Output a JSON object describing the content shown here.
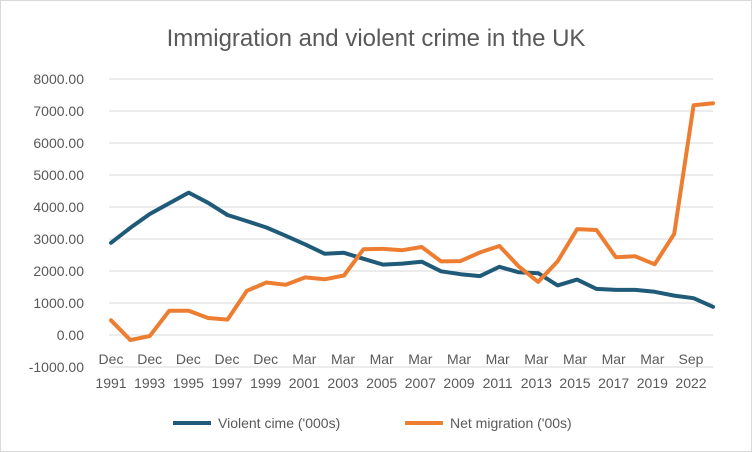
{
  "chart_data": {
    "type": "line",
    "title": "Immigration and violent crime in the UK",
    "xlabel": "",
    "ylabel": "",
    "ylim": [
      -1000,
      8000
    ],
    "y_ticks": [
      "8000.00",
      "7000.00",
      "6000.00",
      "5000.00",
      "4000.00",
      "3000.00",
      "2000.00",
      "1000.00",
      "0.00",
      "-1000.00"
    ],
    "x_labels": [
      {
        "month": "Dec",
        "year": "1991"
      },
      {
        "month": "Dec",
        "year": "1993"
      },
      {
        "month": "Dec",
        "year": "1995"
      },
      {
        "month": "Dec",
        "year": "1997"
      },
      {
        "month": "Dec",
        "year": "1999"
      },
      {
        "month": "Mar",
        "year": "2001"
      },
      {
        "month": "Mar",
        "year": "2003"
      },
      {
        "month": "Mar",
        "year": "2005"
      },
      {
        "month": "Mar",
        "year": "2007"
      },
      {
        "month": "Mar",
        "year": "2009"
      },
      {
        "month": "Mar",
        "year": "2011"
      },
      {
        "month": "Mar",
        "year": "2013"
      },
      {
        "month": "Mar",
        "year": "2015"
      },
      {
        "month": "Mar",
        "year": "2017"
      },
      {
        "month": "Mar",
        "year": "2019"
      },
      {
        "month": "Sep",
        "year": "2022"
      }
    ],
    "grid": true,
    "legend_position": "bottom",
    "series": [
      {
        "name": "Violent cime ('000s)",
        "color": "#1f5a78",
        "values": [
          2880,
          3350,
          3780,
          4120,
          4450,
          4130,
          3750,
          3560,
          3360,
          3100,
          2830,
          2540,
          2570,
          2380,
          2200,
          2230,
          2290,
          1990,
          1900,
          1840,
          2130,
          1960,
          1930,
          1550,
          1730,
          1440,
          1410,
          1410,
          1350,
          1230,
          1150,
          880
        ]
      },
      {
        "name": "Net migration ('00s)",
        "color": "#ed7d31",
        "values": [
          460,
          -160,
          -30,
          760,
          760,
          530,
          480,
          1380,
          1640,
          1570,
          1800,
          1740,
          1860,
          2680,
          2690,
          2650,
          2750,
          2300,
          2310,
          2580,
          2780,
          2140,
          1660,
          2300,
          3310,
          3280,
          2430,
          2460,
          2210,
          3160,
          7180,
          7240
        ]
      }
    ]
  }
}
